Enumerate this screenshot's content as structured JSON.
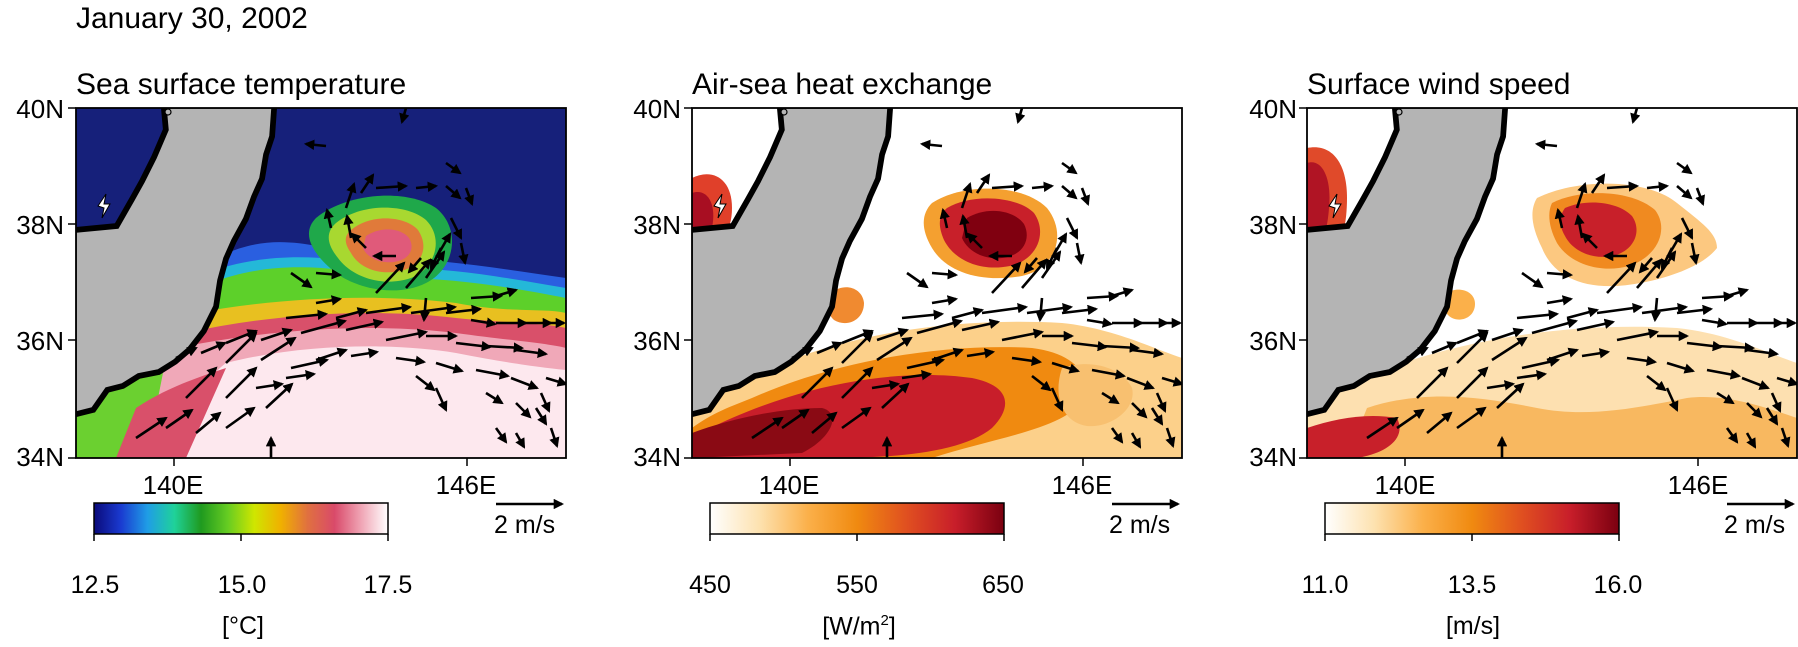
{
  "date": "January 30, 2002",
  "panels": [
    {
      "title": "Sea surface temperature",
      "colorbar": {
        "ticks": [
          "12.5",
          "15.0",
          "17.5"
        ],
        "unit": "[°C]",
        "colors": [
          "#0a0a7a",
          "#1a3ad0",
          "#1f9de6",
          "#1fd29a",
          "#1f9a1f",
          "#66cc22",
          "#cfe600",
          "#f0b000",
          "#e07040",
          "#d94a6a",
          "#f0a5b5",
          "#ffffff"
        ]
      }
    },
    {
      "title": "Air-sea heat exchange",
      "colorbar": {
        "ticks": [
          "450",
          "550",
          "650"
        ],
        "unit_prefix": "[W/m",
        "unit_sup": "2",
        "unit_suffix": "]",
        "colors": [
          "#ffffff",
          "#fde2b0",
          "#fbb04a",
          "#f08a10",
          "#e05020",
          "#c81e2a",
          "#7a0010"
        ]
      }
    },
    {
      "title": "Surface wind speed",
      "colorbar": {
        "ticks": [
          "11.0",
          "13.5",
          "16.0"
        ],
        "unit": "[m/s]",
        "colors": [
          "#ffffff",
          "#fde2b0",
          "#fbb04a",
          "#f08a10",
          "#e05020",
          "#c81e2a",
          "#7a0010"
        ]
      }
    }
  ],
  "axes": {
    "y_ticks": [
      "40N",
      "38N",
      "36N",
      "34N"
    ],
    "x_ticks": [
      "140E",
      "146E"
    ]
  },
  "wind_scale_label": "2 m/s",
  "colors": {
    "land": "#b4b4b4",
    "coast_band": "#000000"
  }
}
